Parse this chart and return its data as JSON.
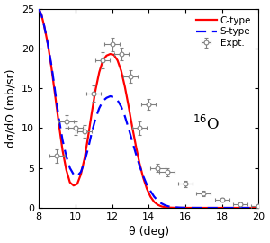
{
  "xlabel": "θ (deg)",
  "ylabel": "dσ/dΩ (mb/sr)",
  "xlim": [
    8,
    20
  ],
  "ylim": [
    0,
    25
  ],
  "xticks": [
    8,
    10,
    12,
    14,
    16,
    18,
    20
  ],
  "yticks": [
    0,
    5,
    10,
    15,
    20,
    25
  ],
  "c_type_color": "#ff0000",
  "s_type_color": "#0000ff",
  "expt_color": "#808080",
  "background_color": "#ffffff",
  "c_type_x": [
    8.0,
    8.15,
    8.3,
    8.5,
    8.7,
    8.9,
    9.1,
    9.3,
    9.5,
    9.7,
    9.9,
    10.1,
    10.3,
    10.5,
    10.7,
    10.9,
    11.1,
    11.3,
    11.5,
    11.7,
    11.9,
    12.1,
    12.3,
    12.5,
    12.7,
    12.9,
    13.1,
    13.3,
    13.5,
    13.7,
    13.9,
    14.1,
    14.3,
    14.5,
    14.7,
    14.9,
    15.1,
    15.4,
    15.7,
    16.0,
    16.5,
    17.0,
    17.5,
    18.0,
    18.5,
    19.0,
    19.5,
    20.0
  ],
  "c_type_y": [
    25.0,
    24.2,
    22.8,
    20.5,
    17.5,
    14.0,
    10.5,
    7.2,
    4.8,
    3.2,
    2.8,
    3.0,
    4.2,
    6.2,
    9.0,
    12.0,
    14.8,
    17.0,
    18.5,
    19.1,
    19.3,
    19.2,
    18.5,
    17.2,
    15.2,
    12.8,
    10.2,
    7.8,
    5.6,
    3.8,
    2.4,
    1.4,
    0.75,
    0.38,
    0.18,
    0.08,
    0.04,
    0.015,
    0.006,
    0.003,
    0.001,
    0.0005,
    0.0003,
    0.0002,
    0.0001,
    0.0001,
    0.0001,
    0.0001
  ],
  "s_type_x": [
    8.0,
    8.15,
    8.3,
    8.5,
    8.7,
    8.9,
    9.1,
    9.3,
    9.5,
    9.7,
    9.9,
    10.1,
    10.3,
    10.5,
    10.7,
    10.9,
    11.1,
    11.3,
    11.5,
    11.7,
    11.9,
    12.1,
    12.3,
    12.5,
    12.7,
    12.9,
    13.1,
    13.3,
    13.5,
    13.7,
    13.9,
    14.1,
    14.3,
    14.5,
    14.7,
    14.9,
    15.1,
    15.4,
    15.7,
    16.0,
    16.5,
    17.0,
    17.5,
    18.0,
    18.5,
    19.0,
    19.5,
    20.0
  ],
  "s_type_y": [
    25.0,
    24.2,
    22.8,
    20.5,
    17.8,
    14.5,
    11.2,
    8.5,
    6.5,
    5.0,
    4.2,
    4.0,
    4.5,
    5.8,
    7.5,
    9.5,
    11.2,
    12.5,
    13.4,
    13.8,
    14.0,
    13.9,
    13.5,
    12.7,
    11.5,
    10.0,
    8.4,
    6.8,
    5.3,
    4.0,
    2.9,
    2.1,
    1.4,
    0.9,
    0.55,
    0.32,
    0.18,
    0.08,
    0.035,
    0.015,
    0.005,
    0.002,
    0.001,
    0.0005,
    0.0003,
    0.0001,
    0.0001,
    0.0001
  ],
  "expt_x": [
    9.0,
    9.5,
    10.0,
    10.5,
    11.0,
    11.5,
    12.0,
    12.5,
    13.0,
    13.5,
    14.0,
    14.5,
    15.0,
    16.0,
    17.0,
    18.0,
    19.0,
    20.0
  ],
  "expt_y": [
    6.5,
    10.8,
    10.0,
    9.6,
    14.3,
    18.5,
    20.5,
    19.3,
    16.5,
    10.0,
    13.0,
    5.0,
    4.5,
    3.0,
    1.8,
    1.0,
    0.5,
    0.25
  ],
  "expt_yerr": [
    0.8,
    0.8,
    0.8,
    0.8,
    1.0,
    1.0,
    0.8,
    0.8,
    0.8,
    0.8,
    0.7,
    0.5,
    0.5,
    0.4,
    0.3,
    0.2,
    0.15,
    0.1
  ],
  "expt_xerr": 0.4,
  "legend_fontsize": 7.5,
  "axis_fontsize": 9,
  "tick_fontsize": 8
}
